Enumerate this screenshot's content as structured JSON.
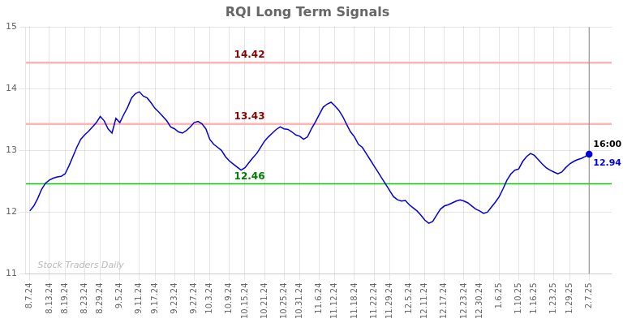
{
  "chart_data": {
    "type": "line",
    "title": "RQI Long Term Signals",
    "color": "#0000dd",
    "grid": true,
    "ylim": [
      11,
      15
    ],
    "yticks": [
      11,
      12,
      13,
      14,
      15
    ],
    "categories": [
      "8.7.24",
      null,
      null,
      null,
      null,
      "8.13.24",
      null,
      null,
      null,
      "8.19.24",
      null,
      null,
      null,
      null,
      "8.23.24",
      null,
      null,
      null,
      "8.29.24",
      null,
      null,
      null,
      null,
      "9.5.24",
      null,
      null,
      null,
      null,
      "9.11.24",
      null,
      null,
      null,
      "9.17.24",
      null,
      null,
      null,
      null,
      "9.23.24",
      null,
      null,
      null,
      null,
      "9.27.24",
      null,
      null,
      null,
      "10.3.24",
      null,
      null,
      null,
      null,
      "10.9.24",
      null,
      null,
      null,
      "10.15.24",
      null,
      null,
      null,
      null,
      "10.21.24",
      null,
      null,
      null,
      null,
      "10.25.24",
      null,
      null,
      null,
      "10.31.24",
      null,
      null,
      null,
      null,
      "11.6.24",
      null,
      null,
      null,
      "11.12.24",
      null,
      null,
      null,
      null,
      "11.18.24",
      null,
      null,
      null,
      null,
      "11.22.24",
      null,
      null,
      null,
      "11.29.24",
      null,
      null,
      null,
      null,
      "12.5.24",
      null,
      null,
      null,
      "12.11.24",
      null,
      null,
      null,
      null,
      "12.17.24",
      null,
      null,
      null,
      null,
      "12.23.24",
      null,
      null,
      null,
      "12.30.24",
      null,
      null,
      null,
      null,
      "1.6.25",
      null,
      null,
      null,
      null,
      "1.10.25",
      null,
      null,
      null,
      "1.16.25",
      null,
      null,
      null,
      null,
      "1.23.25",
      null,
      null,
      null,
      "1.29.25",
      null,
      null,
      null,
      null,
      "2.7.25"
    ],
    "values": [
      12.02,
      12.1,
      12.22,
      12.37,
      12.47,
      12.52,
      12.55,
      12.57,
      12.58,
      12.62,
      12.75,
      12.9,
      13.05,
      13.18,
      13.25,
      13.31,
      13.38,
      13.45,
      13.55,
      13.48,
      13.35,
      13.28,
      13.52,
      13.45,
      13.58,
      13.7,
      13.85,
      13.92,
      13.95,
      13.88,
      13.85,
      13.77,
      13.68,
      13.62,
      13.55,
      13.48,
      13.38,
      13.35,
      13.3,
      13.28,
      13.32,
      13.38,
      13.45,
      13.47,
      13.43,
      13.35,
      13.18,
      13.1,
      13.05,
      13.0,
      12.9,
      12.83,
      12.78,
      12.73,
      12.68,
      12.72,
      12.8,
      12.88,
      12.95,
      13.05,
      13.15,
      13.22,
      13.28,
      13.34,
      13.38,
      13.35,
      13.34,
      13.3,
      13.25,
      13.23,
      13.18,
      13.22,
      13.35,
      13.46,
      13.58,
      13.7,
      13.75,
      13.78,
      13.72,
      13.65,
      13.55,
      13.42,
      13.3,
      13.22,
      13.1,
      13.05,
      12.95,
      12.85,
      12.75,
      12.65,
      12.55,
      12.45,
      12.35,
      12.25,
      12.2,
      12.18,
      12.19,
      12.12,
      12.07,
      12.02,
      11.95,
      11.87,
      11.82,
      11.85,
      11.95,
      12.05,
      12.1,
      12.12,
      12.15,
      12.18,
      12.2,
      12.18,
      12.15,
      12.1,
      12.05,
      12.02,
      11.98,
      12.0,
      12.08,
      12.16,
      12.25,
      12.38,
      12.52,
      12.62,
      12.68,
      12.7,
      12.82,
      12.9,
      12.95,
      12.92,
      12.85,
      12.78,
      12.72,
      12.68,
      12.65,
      12.62,
      12.65,
      12.72,
      12.78,
      12.82,
      12.85,
      12.87,
      12.9,
      12.94
    ],
    "hlines": [
      {
        "y": 14.42,
        "color": "#ffb3b3",
        "label": "14.42",
        "label_color": "#8b0000"
      },
      {
        "y": 13.43,
        "color": "#ffb3b3",
        "label": "13.43",
        "label_color": "#8b0000"
      },
      {
        "y": 12.46,
        "color": "#00cc00",
        "label": "12.46",
        "label_color": "#008000"
      }
    ],
    "end_labels": [
      {
        "text": "16:00",
        "color": "#000000"
      },
      {
        "text": "12.94",
        "color": "#0000dd"
      }
    ],
    "watermark": {
      "text": "Stock Traders Daily",
      "color": "#bbbbbb"
    }
  }
}
